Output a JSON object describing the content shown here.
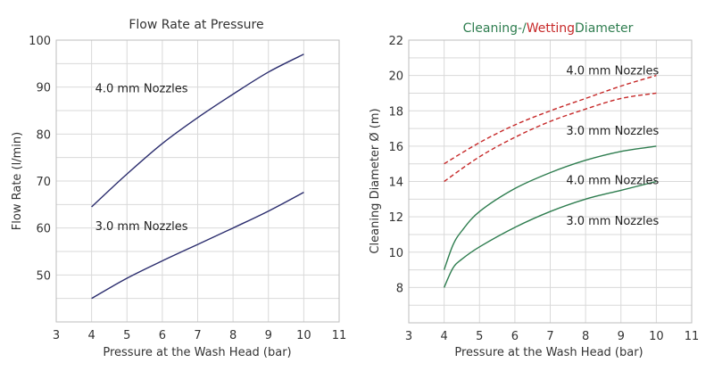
{
  "chart_data": [
    {
      "type": "line",
      "title": "Flow Rate at Pressure",
      "xlabel": "Pressure at the Wash Head (bar)",
      "ylabel": "Flow Rate (l/min)",
      "xlim": [
        3,
        11
      ],
      "ylim": [
        40,
        100
      ],
      "x_ticks": [
        3,
        4,
        5,
        6,
        7,
        8,
        9,
        10,
        11
      ],
      "y_ticks": [
        50,
        60,
        70,
        80,
        90,
        100
      ],
      "grid": true,
      "series": [
        {
          "name": "4.0 mm Nozzles",
          "color": "#2b2d6e",
          "dash": "solid",
          "x": [
            4,
            5,
            6,
            7,
            8,
            9,
            10
          ],
          "y": [
            64.5,
            71.5,
            78,
            83.5,
            88.5,
            93.2,
            97
          ]
        },
        {
          "name": "3.0 mm Nozzles",
          "color": "#2b2d6e",
          "dash": "solid",
          "x": [
            4,
            5,
            6,
            7,
            8,
            9,
            10
          ],
          "y": [
            45,
            49.3,
            53,
            56.5,
            60,
            63.6,
            67.6
          ]
        }
      ],
      "annotations": [
        {
          "text": "4.0 mm Nozzles",
          "x": 4.1,
          "y": 89.8
        },
        {
          "text": "3.0 mm Nozzles",
          "x": 4.1,
          "y": 60.5
        }
      ]
    },
    {
      "type": "line",
      "title_parts": [
        {
          "text": "Cleaning-/",
          "color": "#2e7d4f"
        },
        {
          "text": "Wetting",
          "color": "#c62828"
        },
        {
          "text": "Diameter",
          "color": "#2e7d4f"
        }
      ],
      "xlabel": "Pressure at the Wash Head (bar)",
      "ylabel": "Cleaning Diameter Ø (m)",
      "xlim": [
        3,
        11
      ],
      "ylim": [
        6,
        22
      ],
      "x_ticks": [
        3,
        4,
        5,
        6,
        7,
        8,
        9,
        10,
        11
      ],
      "y_ticks": [
        8,
        10,
        12,
        14,
        16,
        18,
        20,
        22
      ],
      "grid": true,
      "series": [
        {
          "name": "4.0 mm Nozzles",
          "role": "wetting",
          "color": "#c62828",
          "dash": "dashed",
          "x": [
            4,
            5,
            6,
            7,
            8,
            9,
            10
          ],
          "y": [
            15,
            16.2,
            17.2,
            18,
            18.7,
            19.4,
            20
          ]
        },
        {
          "name": "3.0 mm Nozzles",
          "role": "wetting",
          "color": "#c62828",
          "dash": "dashed",
          "x": [
            4,
            5,
            6,
            7,
            8,
            9,
            10
          ],
          "y": [
            14,
            15.4,
            16.5,
            17.4,
            18.1,
            18.7,
            19
          ]
        },
        {
          "name": "4.0 mm Nozzles",
          "role": "cleaning",
          "color": "#2e7d4f",
          "dash": "solid",
          "x": [
            4,
            4.25,
            4.5,
            5,
            6,
            7,
            8,
            9,
            10
          ],
          "y": [
            9,
            10.4,
            11.2,
            12.3,
            13.6,
            14.5,
            15.2,
            15.7,
            16
          ]
        },
        {
          "name": "3.0 mm Nozzles",
          "role": "cleaning",
          "color": "#2e7d4f",
          "dash": "solid",
          "x": [
            4,
            4.25,
            4.5,
            5,
            6,
            7,
            8,
            9,
            10
          ],
          "y": [
            8,
            9.1,
            9.6,
            10.3,
            11.4,
            12.3,
            13,
            13.5,
            14
          ]
        }
      ],
      "annotations": [
        {
          "text": "4.0 mm Nozzles",
          "x": 7.45,
          "y": 20.3
        },
        {
          "text": "3.0 mm Nozzles",
          "x": 7.45,
          "y": 16.9
        },
        {
          "text": "4.0 mm Nozzles",
          "x": 7.45,
          "y": 14.1
        },
        {
          "text": "3.0 mm Nozzles",
          "x": 7.45,
          "y": 11.8
        }
      ]
    }
  ]
}
